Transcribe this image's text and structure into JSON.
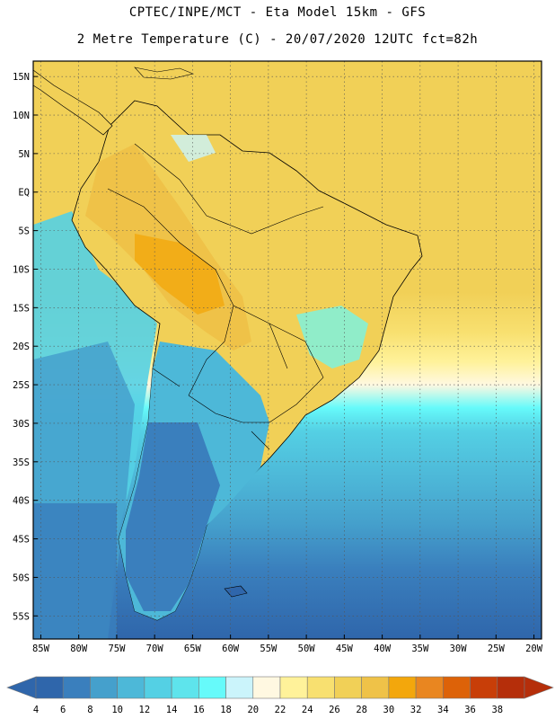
{
  "header": {
    "line1": "CPTEC/INPE/MCT -  Eta Model 15km - GFS",
    "line2": "2 Metre Temperature (C) - 20/07/2020 12UTC fct=82h"
  },
  "map": {
    "lat_labels": [
      "15N",
      "10N",
      "5N",
      "EQ",
      "5S",
      "10S",
      "15S",
      "20S",
      "25S",
      "30S",
      "35S",
      "40S",
      "45S",
      "50S",
      "55S"
    ],
    "lat_values": [
      15,
      10,
      5,
      0,
      -5,
      -10,
      -15,
      -20,
      -25,
      -30,
      -35,
      -40,
      -45,
      -50,
      -55
    ],
    "lon_labels": [
      "85W",
      "80W",
      "75W",
      "70W",
      "65W",
      "60W",
      "55W",
      "50W",
      "45W",
      "40W",
      "35W",
      "30W",
      "25W",
      "20W"
    ],
    "lon_values": [
      -85,
      -80,
      -75,
      -70,
      -65,
      -60,
      -55,
      -50,
      -45,
      -40,
      -35,
      -30,
      -25,
      -20
    ],
    "lat_range": [
      -58,
      17
    ],
    "lon_range": [
      -86,
      -19
    ],
    "grid": true
  },
  "legend": {
    "values": [
      "4",
      "6",
      "8",
      "10",
      "12",
      "14",
      "16",
      "18",
      "20",
      "22",
      "24",
      "26",
      "28",
      "30",
      "32",
      "34",
      "36",
      "38"
    ],
    "colors": [
      "#2f66ab",
      "#3a7fbd",
      "#45a0cc",
      "#4db8d8",
      "#54d0e4",
      "#5ee4ec",
      "#66fafa",
      "#cbf4fb",
      "#fff8e1",
      "#fff29a",
      "#f8e070",
      "#f1d057",
      "#efc248",
      "#f3a70c",
      "#e98620",
      "#dd6208",
      "#c83e08",
      "#b52e0a"
    ]
  }
}
